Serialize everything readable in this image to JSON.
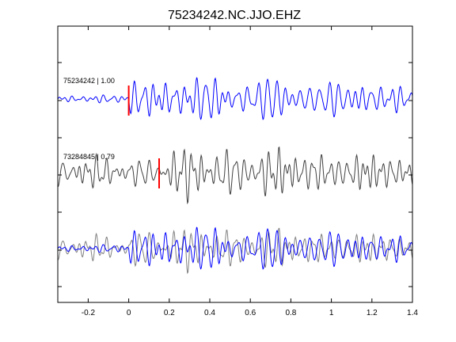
{
  "chart_data": {
    "type": "line",
    "title": "75234242.NC.JJO.EHZ",
    "xlabel": "",
    "ylabel": "",
    "xlim": [
      -0.35,
      1.4
    ],
    "x_ticks": [
      -0.2,
      0,
      0.2,
      0.4,
      0.6,
      0.8,
      1,
      1.2,
      1.4
    ],
    "x_tick_labels": [
      "-0.2",
      "0",
      "0.2",
      "0.4",
      "0.6",
      "0.8",
      "1",
      "1.2",
      "1.4"
    ],
    "y_tick_labels_shown": false,
    "grid": false,
    "traces": [
      {
        "label": "75234242 | 1.00",
        "color": "#0000ff",
        "pick_time": 0.0,
        "pick_color": "#ff0000"
      },
      {
        "label": "73284845 | 0.79",
        "color": "#404040",
        "pick_time": 0.15,
        "pick_color": "#ff0000"
      },
      {
        "label": "",
        "overlay": true,
        "series_colors": [
          "#0000ff",
          "#808080"
        ]
      }
    ]
  }
}
